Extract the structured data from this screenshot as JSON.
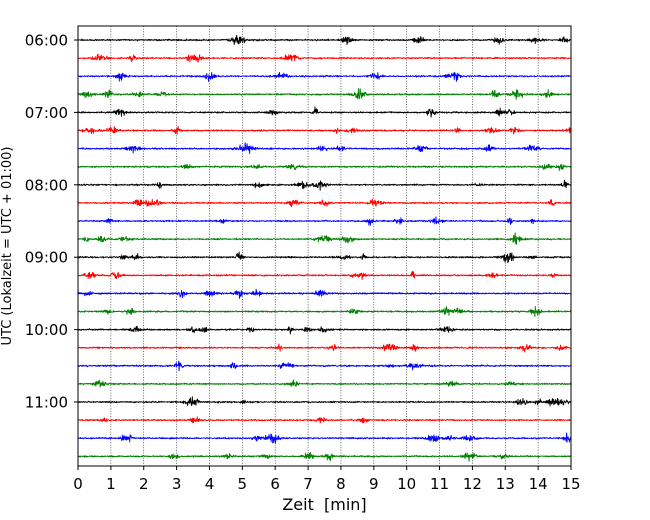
{
  "chart_data": {
    "type": "line",
    "title": "",
    "xlabel": "Zeit  [min]",
    "ylabel": "UTC (Lokalzeit = UTC + 01:00)",
    "xlim": [
      0,
      15
    ],
    "x_ticks": [
      0,
      1,
      2,
      3,
      4,
      5,
      6,
      7,
      8,
      9,
      10,
      11,
      12,
      13,
      14,
      15
    ],
    "x_grid": true,
    "y_tick_labels": [
      "06:00",
      "07:00",
      "08:00",
      "09:00",
      "10:00",
      "11:00"
    ],
    "trace_interval_minutes": 15,
    "trace_start": "06:00",
    "trace_count": 24,
    "trace_color_cycle": [
      "#000000",
      "#ff0000",
      "#0000ff",
      "#008000"
    ],
    "series": [
      {
        "color": "#000000",
        "traces": [
          "06:00",
          "07:00",
          "08:00",
          "09:00",
          "10:00",
          "11:00"
        ]
      },
      {
        "color": "#ff0000",
        "traces": [
          "06:15",
          "07:15",
          "08:15",
          "09:15",
          "10:15",
          "11:15"
        ]
      },
      {
        "color": "#0000ff",
        "traces": [
          "06:30",
          "07:30",
          "08:30",
          "09:30",
          "10:30",
          "11:30"
        ]
      },
      {
        "color": "#008000",
        "traces": [
          "06:45",
          "07:45",
          "08:45",
          "09:45",
          "10:45",
          "11:45"
        ]
      }
    ]
  }
}
